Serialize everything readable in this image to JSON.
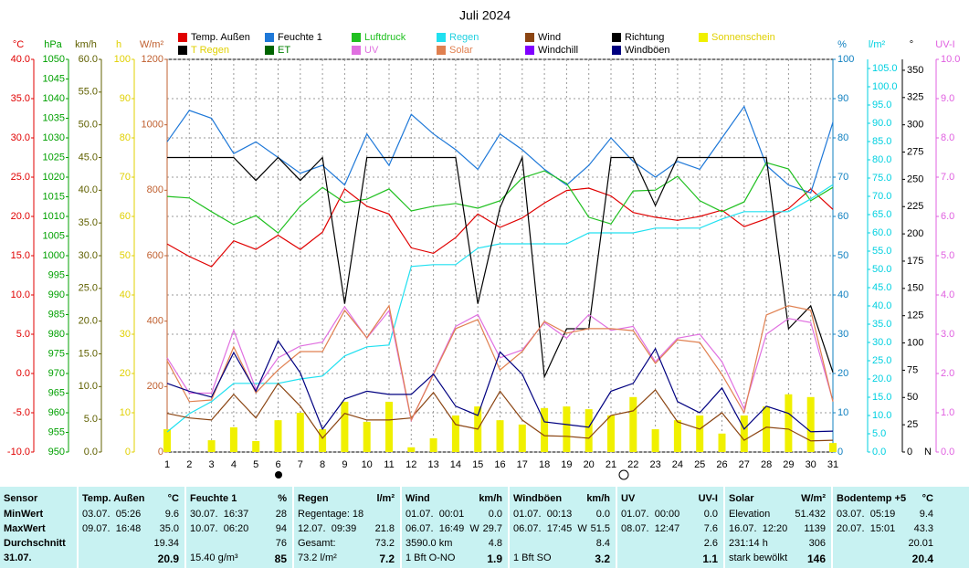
{
  "chart_data": {
    "type": "line",
    "title": "Juli 2024",
    "categories": [
      1,
      2,
      3,
      4,
      5,
      6,
      7,
      8,
      9,
      10,
      11,
      12,
      13,
      14,
      15,
      16,
      17,
      18,
      19,
      20,
      21,
      22,
      23,
      24,
      25,
      26,
      27,
      28,
      29,
      30,
      31
    ],
    "grid": true,
    "grid_axis": 0,
    "axes": [
      {
        "label": "°C",
        "side": "left",
        "color": "#e00000",
        "ylim": [
          -10,
          40
        ],
        "yticks": [
          {
            "value": -10,
            "label": "-10.0"
          },
          {
            "value": -5,
            "label": "-5.0"
          },
          {
            "value": 0,
            "label": "0.0"
          },
          {
            "value": 5,
            "label": "5.0"
          },
          {
            "value": 10,
            "label": "10.0"
          },
          {
            "value": 15,
            "label": "15.0"
          },
          {
            "value": 20,
            "label": "20.0"
          },
          {
            "value": 25,
            "label": "25.0"
          },
          {
            "value": 30,
            "label": "30.0"
          },
          {
            "value": 35,
            "label": "35.0"
          },
          {
            "value": 40,
            "label": "40.0"
          }
        ]
      },
      {
        "label": "hPa",
        "side": "left",
        "color": "#00a000",
        "ylim": [
          950,
          1050
        ],
        "yticks": [
          950,
          955,
          960,
          965,
          970,
          975,
          980,
          985,
          990,
          995,
          1000,
          1005,
          1010,
          1015,
          1020,
          1025,
          1030,
          1035,
          1040,
          1045,
          1050
        ]
      },
      {
        "label": "km/h",
        "side": "left",
        "color": "#606000",
        "ylim": [
          0,
          60
        ],
        "yticks": [
          {
            "value": 0,
            "label": "0.0"
          },
          {
            "value": 5,
            "label": "5.0"
          },
          {
            "value": 10,
            "label": "10.0"
          },
          {
            "value": 15,
            "label": "15.0"
          },
          {
            "value": 20,
            "label": "20.0"
          },
          {
            "value": 25,
            "label": "25.0"
          },
          {
            "value": 30,
            "label": "30.0"
          },
          {
            "value": 35,
            "label": "35.0"
          },
          {
            "value": 40,
            "label": "40.0"
          },
          {
            "value": 45,
            "label": "45.0"
          },
          {
            "value": 50,
            "label": "50.0"
          },
          {
            "value": 55,
            "label": "55.0"
          },
          {
            "value": 60,
            "label": "60.0"
          }
        ]
      },
      {
        "label": "h",
        "side": "left",
        "color": "#e0d000",
        "ylim": [
          0,
          100
        ],
        "yticks": [
          0,
          10,
          20,
          30,
          40,
          50,
          60,
          70,
          80,
          90,
          100
        ]
      },
      {
        "label": "W/m²",
        "side": "left",
        "color": "#c06030",
        "ylim": [
          0,
          1200
        ],
        "yticks": [
          0,
          200,
          400,
          600,
          800,
          1000,
          1200
        ]
      },
      {
        "label": "%",
        "side": "right",
        "color": "#1080c0",
        "ylim": [
          0,
          100
        ],
        "yticks": [
          0,
          10,
          20,
          30,
          40,
          50,
          60,
          70,
          80,
          90,
          100
        ]
      },
      {
        "label": "l/m²",
        "side": "right",
        "color": "#00d0e0",
        "ylim": [
          0,
          107.5
        ],
        "yticks": [
          {
            "value": 0,
            "label": "0.0"
          },
          {
            "value": 5,
            "label": "5.0"
          },
          {
            "value": 10,
            "label": "10.0"
          },
          {
            "value": 15,
            "label": "15.0"
          },
          {
            "value": 20,
            "label": "20.0"
          },
          {
            "value": 25,
            "label": "25.0"
          },
          {
            "value": 30,
            "label": "30.0"
          },
          {
            "value": 35,
            "label": "35.0"
          },
          {
            "value": 40,
            "label": "40.0"
          },
          {
            "value": 45,
            "label": "45.0"
          },
          {
            "value": 50,
            "label": "50.0"
          },
          {
            "value": 55,
            "label": "55.0"
          },
          {
            "value": 60,
            "label": "60.0"
          },
          {
            "value": 65,
            "label": "65.0"
          },
          {
            "value": 70,
            "label": "70.0"
          },
          {
            "value": 75,
            "label": "75.0"
          },
          {
            "value": 80,
            "label": "80.0"
          },
          {
            "value": 85,
            "label": "85.0"
          },
          {
            "value": 90,
            "label": "90.0"
          },
          {
            "value": 95,
            "label": "95.0"
          },
          {
            "value": 100,
            "label": "100.0"
          },
          {
            "value": 105,
            "label": "105.0"
          }
        ]
      },
      {
        "label": "°",
        "side": "right",
        "color": "#000000",
        "ylim": [
          0,
          360
        ],
        "zero_label": "N",
        "yticks": [
          0,
          25,
          50,
          75,
          100,
          125,
          150,
          175,
          200,
          225,
          250,
          275,
          300,
          325,
          350
        ]
      },
      {
        "label": "UV-I",
        "side": "right",
        "color": "#e060e0",
        "ylim": [
          0,
          10
        ],
        "yticks": [
          {
            "value": 0,
            "label": "0.0"
          },
          {
            "value": 1,
            "label": "1.0"
          },
          {
            "value": 2,
            "label": "2.0"
          },
          {
            "value": 3,
            "label": "3.0"
          },
          {
            "value": 4,
            "label": "4.0"
          },
          {
            "value": 5,
            "label": "5.0"
          },
          {
            "value": 6,
            "label": "6.0"
          },
          {
            "value": 7,
            "label": "7.0"
          },
          {
            "value": 8,
            "label": "8.0"
          },
          {
            "value": 9,
            "label": "9.0"
          },
          {
            "value": 10,
            "label": "10.0"
          }
        ]
      }
    ],
    "series": [
      {
        "name": "Temp. Außen",
        "color": "#e00000",
        "label_color": "#000000",
        "axis": 0,
        "values": [
          16.5,
          14.9,
          13.6,
          16.9,
          15.8,
          17.6,
          15.8,
          18.0,
          23.5,
          21.3,
          20.3,
          16.0,
          15.3,
          17.3,
          20.3,
          18.6,
          19.8,
          21.7,
          23.3,
          23.6,
          22.6,
          20.5,
          19.9,
          19.5,
          20.0,
          20.8,
          18.7,
          19.7,
          21.0,
          23.5,
          20.9
        ]
      },
      {
        "name": "Feuchte 1",
        "color": "#1e78d8",
        "label_color": "#000000",
        "axis": 5,
        "values": [
          79,
          87,
          85,
          76,
          79,
          75,
          71,
          73,
          68,
          81,
          73,
          86,
          81,
          77,
          72,
          81,
          77,
          72,
          68,
          73,
          80,
          74,
          70,
          74,
          72,
          80,
          88,
          73,
          68,
          66,
          84
        ]
      },
      {
        "name": "Luftdruck",
        "color": "#20c020",
        "label_color": "#20c020",
        "axis": 1,
        "values": [
          1015.1,
          1014.7,
          1011.2,
          1007.9,
          1010.2,
          1005.8,
          1012.6,
          1017.4,
          1013.5,
          1014.4,
          1017.0,
          1011.4,
          1012.6,
          1013.3,
          1012.1,
          1014.0,
          1019.8,
          1021.6,
          1018.4,
          1009.8,
          1008.1,
          1016.5,
          1016.7,
          1020.2,
          1014.0,
          1011.2,
          1013.7,
          1023.7,
          1022.1,
          1014.0,
          1017.4
        ]
      },
      {
        "name": "Regen",
        "color": "#20e0f0",
        "label_color": "#20d0e0",
        "axis": 6,
        "values": [
          5.5,
          10.5,
          13.8,
          18.8,
          18.8,
          18.8,
          20.0,
          20.8,
          26.3,
          28.8,
          29.3,
          50.8,
          51.3,
          51.3,
          55.8,
          57.0,
          57.0,
          57.0,
          57.0,
          60.0,
          60.0,
          60.0,
          61.3,
          61.3,
          61.3,
          63.8,
          65.8,
          65.8,
          65.8,
          69.3,
          73.2
        ]
      },
      {
        "name": "Wind",
        "color": "#8b4513",
        "label_color": "#000000",
        "axis": 2,
        "values": [
          5.9,
          5.2,
          4.9,
          8.8,
          5.2,
          10.5,
          7.0,
          2.1,
          5.9,
          4.9,
          4.9,
          5.2,
          9.1,
          4.2,
          3.5,
          9.3,
          4.9,
          2.5,
          2.4,
          2.1,
          5.6,
          6.3,
          9.5,
          4.6,
          3.5,
          6.0,
          1.8,
          3.8,
          3.5,
          1.7,
          1.8
        ]
      },
      {
        "name": "Richtung",
        "color": "#000000",
        "label_color": "#000000",
        "axis": 7,
        "values": [
          270,
          270,
          270,
          270,
          249,
          270,
          249,
          270,
          136,
          270,
          270,
          270,
          270,
          270,
          136,
          224,
          270,
          69,
          113,
          113,
          270,
          270,
          226,
          270,
          270,
          270,
          270,
          270,
          113,
          134,
          73
        ]
      },
      {
        "name": "Sonnenschein",
        "color": "#f0f000",
        "label_color": "#e0d000",
        "axis": 3,
        "style": "bar",
        "values": [
          5.8,
          0,
          3.0,
          6.3,
          2.8,
          8.1,
          10.0,
          5.8,
          12.8,
          7.7,
          12.8,
          1.2,
          3.5,
          9.3,
          11.6,
          8.1,
          7.0,
          11.2,
          11.6,
          10.9,
          9.3,
          14.0,
          5.8,
          8.1,
          9.3,
          4.7,
          9.3,
          11.6,
          14.7,
          14.0,
          2.3
        ]
      },
      {
        "name": "T Regen",
        "color": "#000000",
        "label_color": "#e0d000"
      },
      {
        "name": "ET",
        "color": "#006400",
        "label_color": "#008000"
      },
      {
        "name": "UV",
        "color": "#e070e0",
        "label_color": "#e070e0",
        "axis": 8,
        "values": [
          2.4,
          1.5,
          1.5,
          3.1,
          1.6,
          2.4,
          2.7,
          2.8,
          3.7,
          2.9,
          3.6,
          0.8,
          2.0,
          3.2,
          3.5,
          2.4,
          2.6,
          3.3,
          2.9,
          3.5,
          3.1,
          3.2,
          2.3,
          2.9,
          3.0,
          2.3,
          1.1,
          3.0,
          3.4,
          3.3,
          1.3
        ]
      },
      {
        "name": "Solar",
        "color": "#e08050",
        "label_color": "#e08050",
        "axis": 4,
        "values": [
          279,
          154,
          159,
          321,
          181,
          251,
          307,
          307,
          433,
          349,
          447,
          98,
          237,
          377,
          405,
          251,
          307,
          399,
          363,
          377,
          377,
          371,
          271,
          343,
          335,
          237,
          120,
          419,
          447,
          433,
          154
        ]
      },
      {
        "name": "Windchill",
        "color": "#8000ff",
        "label_color": "#000000"
      },
      {
        "name": "Windböen",
        "color": "#000080",
        "label_color": "#000000",
        "axis": 2,
        "values": [
          10.5,
          9.3,
          8.4,
          15.2,
          9.3,
          17.0,
          12.1,
          3.5,
          8.1,
          9.3,
          8.8,
          8.8,
          11.9,
          7.0,
          5.6,
          15.3,
          11.9,
          4.6,
          4.2,
          3.8,
          9.3,
          10.5,
          15.8,
          7.7,
          6.0,
          9.8,
          3.5,
          7.0,
          5.9,
          3.1,
          3.2
        ]
      }
    ]
  },
  "table": {
    "header": "Sensor",
    "row_labels": [
      "MinWert",
      "MaxWert",
      "Durchschnitt",
      "31.07."
    ],
    "columns": [
      {
        "title": "Temp. Außen",
        "unit": "°C",
        "rows": [
          {
            "l": "03.07.  05:26",
            "r": "9.6"
          },
          {
            "l": "09.07.  16:48",
            "r": "35.0"
          },
          {
            "r": "19.34"
          },
          {
            "r": "20.9"
          }
        ]
      },
      {
        "title": "Feuchte 1",
        "unit": "%",
        "rows": [
          {
            "l": "30.07.  16:37",
            "r": "28"
          },
          {
            "l": "10.07.  06:20",
            "r": "94"
          },
          {
            "r": "76"
          },
          {
            "l": "15.40 g/m³",
            "r": "85"
          }
        ]
      },
      {
        "title": "Regen",
        "unit": "l/m²",
        "rows": [
          {
            "l": "Regentage: 18"
          },
          {
            "l": "12.07.  09:39",
            "r": "21.8"
          },
          {
            "l": "Gesamt:",
            "r": "73.2"
          },
          {
            "l": "73.2 l/m²",
            "r": "7.2"
          }
        ]
      },
      {
        "title": "Wind",
        "unit": "km/h",
        "rows": [
          {
            "l": "01.07.  00:01",
            "r": "0.0"
          },
          {
            "l": "06.07.  16:49  W",
            "r": "29.7"
          },
          {
            "l": "3590.0 km",
            "r": "4.8"
          },
          {
            "l": "1 Bft O-NO",
            "r": "1.9"
          }
        ]
      },
      {
        "title": "Windböen",
        "unit": "km/h",
        "rows": [
          {
            "l": "01.07.  00:13",
            "r": "0.0"
          },
          {
            "l": "06.07.  17:45  W",
            "r": "51.5"
          },
          {
            "r": "8.4"
          },
          {
            "l": "1 Bft SO",
            "r": "3.2"
          }
        ]
      },
      {
        "title": "UV",
        "unit": "UV-I",
        "rows": [
          {
            "l": "01.07.  00:00",
            "r": "0.0"
          },
          {
            "l": "08.07.  12:47",
            "r": "7.6"
          },
          {
            "r": "2.6"
          },
          {
            "r": "1.1"
          }
        ]
      },
      {
        "title": "Solar",
        "unit": "W/m²",
        "rows": [
          {
            "l": "Elevation",
            "r": "51.432"
          },
          {
            "l": "16.07.  12:20",
            "r": "1139"
          },
          {
            "l": "231:14 h",
            "r": "306"
          },
          {
            "l": "stark bewölkt",
            "r": "146"
          }
        ]
      },
      {
        "title": "Bodentemp +5",
        "unit": "°C",
        "rows": [
          {
            "l": "03.07.  05:19",
            "r": "9.4"
          },
          {
            "l": "20.07.  15:01",
            "r": "43.3"
          },
          {
            "r": "20.01"
          },
          {
            "r": "20.4"
          }
        ]
      }
    ]
  }
}
